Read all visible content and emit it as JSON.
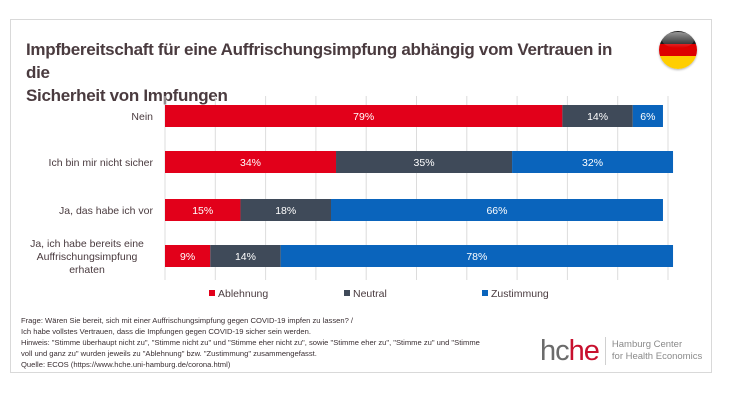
{
  "title_line1": "Impfbereitschaft für eine Auffrischungsimpfung abhängig vom Vertrauen in die",
  "title_line2": "Sicherheit von Impfungen",
  "flag_icon": "germany-flag-icon",
  "chart_data": {
    "type": "bar",
    "orientation": "horizontal",
    "stacked": true,
    "title": "Impfbereitschaft für eine Auffrischungsimpfung abhängig vom Vertrauen in die Sicherheit von Impfungen",
    "categories": [
      [
        "Nein"
      ],
      [
        "Ich bin mir nicht sicher"
      ],
      [
        "Ja, das habe ich vor"
      ],
      [
        "Ja, ich habe bereits eine",
        "Auffrischungsimpfung",
        "erhaten"
      ]
    ],
    "series": [
      {
        "name": "Ablehnung",
        "color": "#e2001a",
        "values": [
          79,
          34,
          15,
          9
        ]
      },
      {
        "name": "Neutral",
        "color": "#3f4a59",
        "values": [
          14,
          35,
          18,
          14
        ]
      },
      {
        "name": "Zustimmung",
        "color": "#0a64bc",
        "values": [
          6,
          32,
          66,
          78
        ]
      }
    ],
    "value_suffix": "%",
    "xlim": [
      0,
      100
    ],
    "grid": true,
    "grid_step": 10,
    "legend_position": "bottom"
  },
  "notes": [
    "Frage: Wären Sie bereit, sich mit einer Auffrischungsimpfung gegen COVID-19 impfen zu lassen? /",
    "Ich habe vollstes Vertrauen, dass die Impfungen gegen COVID-19 sicher sein werden.",
    "Hinweis: \"Stimme überhaupt nicht zu\", \"Stimme nicht zu\" und \"Stimme eher nicht zu\", sowie \"Stimme eher zu\", \"Stimme zu\" und \"Stimme",
    "voll und ganz zu\" wurden jeweils zu \"Ablehnung\" bzw. \"Zustimmung\" zusammengefasst.",
    "Quelle: ECOS (https://www.hche.uni-hamburg.de/corona.html)"
  ],
  "logo": {
    "mark_gray": "hc",
    "mark_red": "he",
    "line1": "Hamburg Center",
    "line2": "for Health Economics"
  }
}
